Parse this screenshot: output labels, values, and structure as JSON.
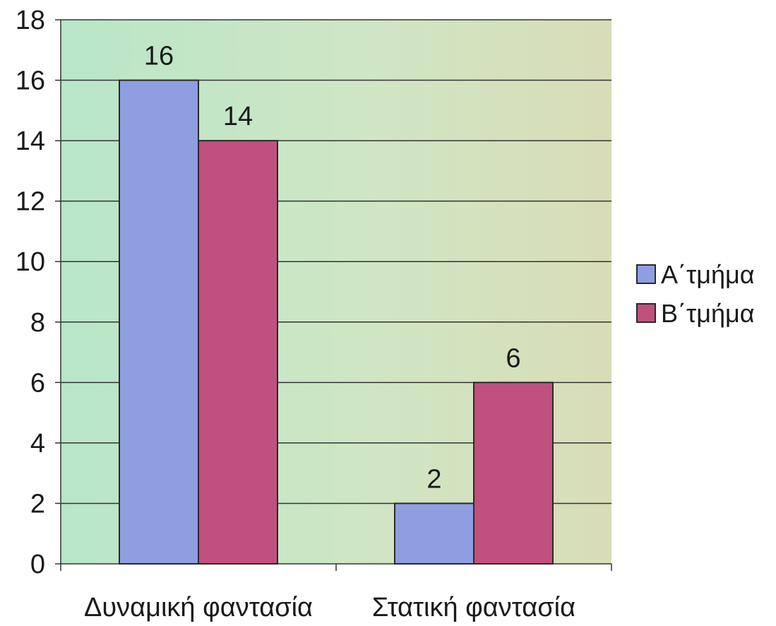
{
  "chart_data": {
    "type": "bar",
    "title": "",
    "xlabel": "",
    "ylabel": "",
    "ylim": [
      0,
      18
    ],
    "yticks": [
      0,
      2,
      4,
      6,
      8,
      10,
      12,
      14,
      16,
      18
    ],
    "categories": [
      "Δυναμική φαντασία",
      "Στατική φαντασία"
    ],
    "series": [
      {
        "name": "Α΄τμήμα",
        "values": [
          16,
          2
        ],
        "color": "#8f9ee0"
      },
      {
        "name": "Β΄τμήμα",
        "values": [
          14,
          6
        ],
        "color": "#c0507e"
      }
    ],
    "data_labels": true,
    "grid": true,
    "legend_position": "right"
  }
}
